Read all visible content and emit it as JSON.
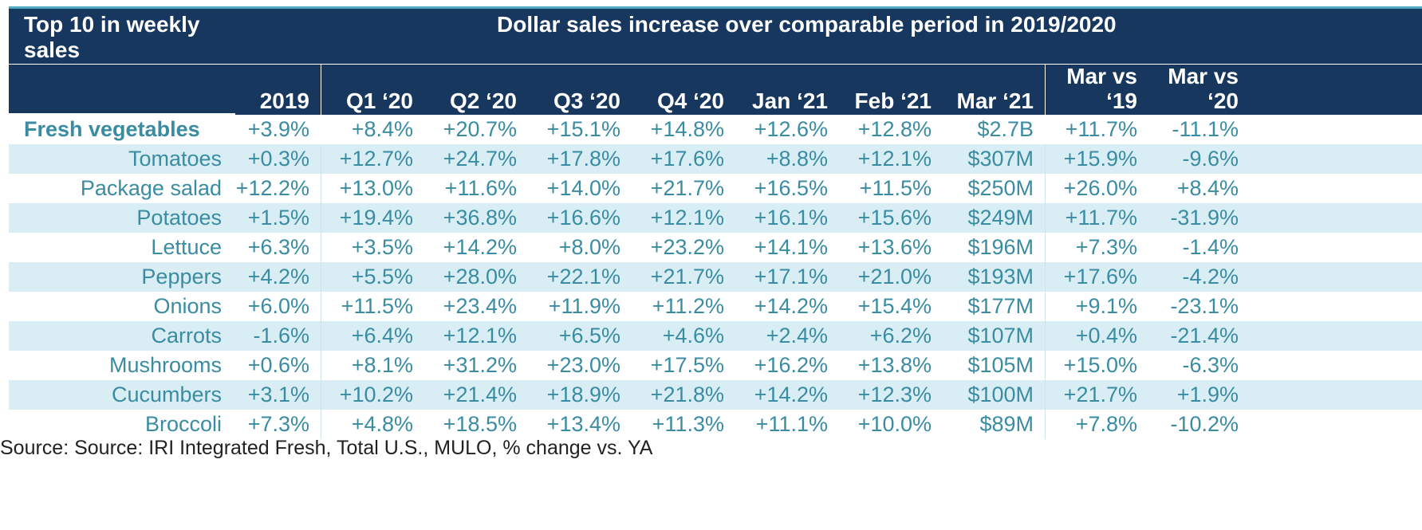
{
  "title_left": "Top 10 in weekly sales",
  "title_right": "Dollar sales increase over comparable period in 2019/2020",
  "columns": [
    "2019",
    "Q1 ‘20",
    "Q2 ‘20",
    "Q3 ‘20",
    "Q4 ‘20",
    "Jan ‘21",
    "Feb ‘21",
    "Mar ‘21",
    "Mar vs ‘19",
    "Mar vs ‘20"
  ],
  "column_lines": [
    [
      "2019"
    ],
    [
      "Q1 ‘20"
    ],
    [
      "Q2 ‘20"
    ],
    [
      "Q3 ‘20"
    ],
    [
      "Q4 ‘20"
    ],
    [
      "Jan ‘21"
    ],
    [
      "Feb ‘21"
    ],
    [
      "Mar ‘21"
    ],
    [
      "Mar vs",
      "‘19"
    ],
    [
      "Mar vs",
      "‘20"
    ]
  ],
  "rows": [
    {
      "label": "Fresh vegetables",
      "values": [
        "+3.9%",
        "+8.4%",
        "+20.7%",
        "+15.1%",
        "+14.8%",
        "+12.6%",
        "+12.8%",
        "$2.7B",
        "+11.7%",
        "-11.1%"
      ]
    },
    {
      "label": "Tomatoes",
      "values": [
        "+0.3%",
        "+12.7%",
        "+24.7%",
        "+17.8%",
        "+17.6%",
        "+8.8%",
        "+12.1%",
        "$307M",
        "+15.9%",
        "-9.6%"
      ]
    },
    {
      "label": "Package salad",
      "values": [
        "+12.2%",
        "+13.0%",
        "+11.6%",
        "+14.0%",
        "+21.7%",
        "+16.5%",
        "+11.5%",
        "$250M",
        "+26.0%",
        "+8.4%"
      ]
    },
    {
      "label": "Potatoes",
      "values": [
        "+1.5%",
        "+19.4%",
        "+36.8%",
        "+16.6%",
        "+12.1%",
        "+16.1%",
        "+15.6%",
        "$249M",
        "+11.7%",
        "-31.9%"
      ]
    },
    {
      "label": "Lettuce",
      "values": [
        "+6.3%",
        "+3.5%",
        "+14.2%",
        "+8.0%",
        "+23.2%",
        "+14.1%",
        "+13.6%",
        "$196M",
        "+7.3%",
        "-1.4%"
      ]
    },
    {
      "label": "Peppers",
      "values": [
        "+4.2%",
        "+5.5%",
        "+28.0%",
        "+22.1%",
        "+21.7%",
        "+17.1%",
        "+21.0%",
        "$193M",
        "+17.6%",
        "-4.2%"
      ]
    },
    {
      "label": "Onions",
      "values": [
        "+6.0%",
        "+11.5%",
        "+23.4%",
        "+11.9%",
        "+11.2%",
        "+14.2%",
        "+15.4%",
        "$177M",
        "+9.1%",
        "-23.1%"
      ]
    },
    {
      "label": "Carrots",
      "values": [
        "-1.6%",
        "+6.4%",
        "+12.1%",
        "+6.5%",
        "+4.6%",
        "+2.4%",
        "+6.2%",
        "$107M",
        "+0.4%",
        "-21.4%"
      ]
    },
    {
      "label": "Mushrooms",
      "values": [
        "+0.6%",
        "+8.1%",
        "+31.2%",
        "+23.0%",
        "+17.5%",
        "+16.2%",
        "+13.8%",
        "$105M",
        "+15.0%",
        "-6.3%"
      ]
    },
    {
      "label": "Cucumbers",
      "values": [
        "+3.1%",
        "+10.2%",
        "+21.4%",
        "+18.9%",
        "+21.8%",
        "+14.2%",
        "+12.3%",
        "$100M",
        "+21.7%",
        "+1.9%"
      ]
    },
    {
      "label": "Broccoli",
      "values": [
        "+7.3%",
        "+4.8%",
        "+18.5%",
        "+13.4%",
        "+11.3%",
        "+11.1%",
        "+10.0%",
        "$89M",
        "+7.8%",
        "-10.2%"
      ]
    }
  ],
  "source": "Source: Source: IRI Integrated Fresh, Total U.S., MULO, % change vs. YA",
  "colors": {
    "header_bg": "#17375e",
    "accent": "#3a8ca3",
    "band": "#d9eef4",
    "rule": "#4fa9c2"
  }
}
